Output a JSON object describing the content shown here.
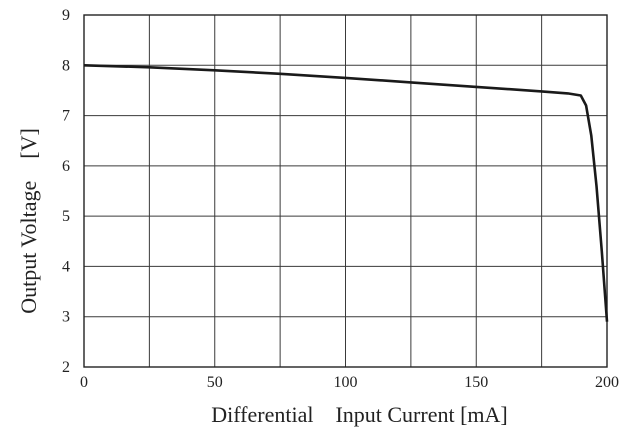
{
  "chart_data": {
    "type": "line",
    "title": "",
    "xlabel": "Differential    Input Current [mA]",
    "ylabel": "Output Voltage    [V]",
    "xlim": [
      0,
      200
    ],
    "ylim": [
      2,
      9
    ],
    "x_ticks": [
      0,
      50,
      100,
      150,
      200
    ],
    "y_ticks": [
      2,
      3,
      4,
      5,
      6,
      7,
      8,
      9
    ],
    "x_grid_step": 25,
    "y_grid_step": 1,
    "grid": true,
    "legend": "none",
    "series": [
      {
        "color": "#1a1a1a",
        "x": [
          0,
          25,
          50,
          75,
          100,
          125,
          150,
          175,
          185,
          190,
          192,
          194,
          196,
          198,
          200
        ],
        "y": [
          8.0,
          7.96,
          7.9,
          7.83,
          7.75,
          7.66,
          7.57,
          7.48,
          7.44,
          7.4,
          7.2,
          6.6,
          5.6,
          4.3,
          2.9
        ]
      }
    ]
  }
}
